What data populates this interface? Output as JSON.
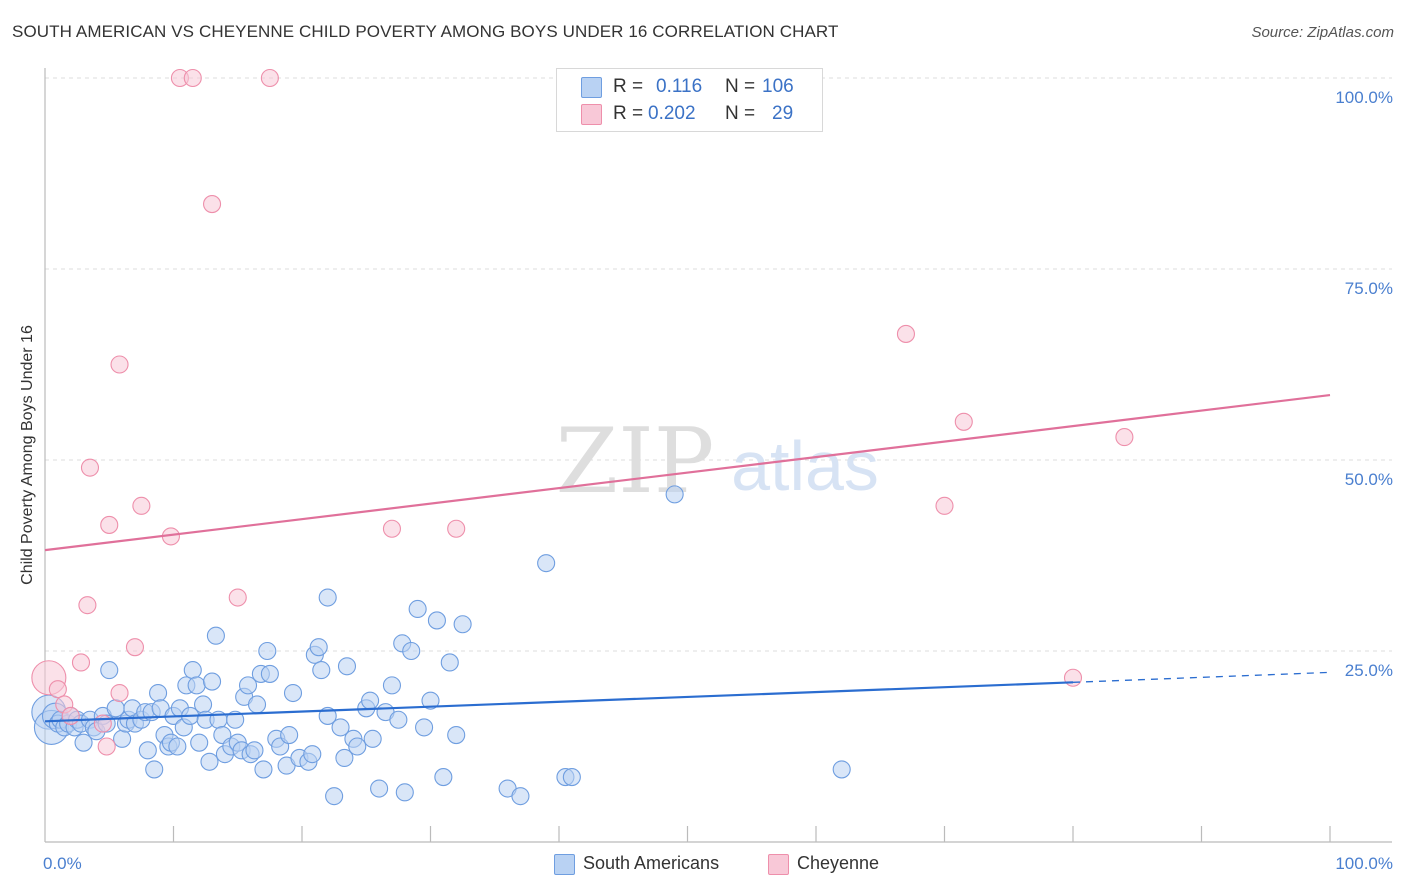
{
  "chart_data": {
    "type": "scatter",
    "title": "SOUTH AMERICAN VS CHEYENNE CHILD POVERTY AMONG BOYS UNDER 16 CORRELATION CHART",
    "source": "Source: ZipAtlas.com",
    "ylabel": "Child Poverty Among Boys Under 16",
    "xlim": [
      0,
      100
    ],
    "ylim": [
      0,
      100
    ],
    "x_tick_labels": [
      "0.0%",
      "100.0%"
    ],
    "y_tick_labels": [
      "100.0%",
      "75.0%",
      "50.0%",
      "25.0%"
    ],
    "y_tick_values": [
      100,
      75,
      50,
      25
    ],
    "watermark": {
      "zip": "ZIP",
      "atlas": "atlas"
    },
    "legend_stats": [
      {
        "r_label": "R =",
        "r": "0.116",
        "n_label": "N =",
        "n": "106"
      },
      {
        "r_label": "R =",
        "r": "0.202",
        "n_label": "N =",
        "n": "29"
      }
    ],
    "series": [
      {
        "name": "South Americans",
        "color": "#6f9ee0",
        "fill": "#b9d2f3",
        "line_color": "#2b6dd0",
        "trend": {
          "x0": 0,
          "y0": 15.8,
          "x1": 80,
          "y1": 20.9,
          "dash_to": 100,
          "dash_y": 22.2
        },
        "points": [
          [
            0.3,
            17.0,
            2
          ],
          [
            0.5,
            15.0,
            2
          ],
          [
            0.8,
            16.5,
            1.5
          ],
          [
            1.0,
            15.5,
            1
          ],
          [
            1.2,
            16.0,
            1
          ],
          [
            1.5,
            15.0,
            1
          ],
          [
            1.8,
            15.5,
            1
          ],
          [
            2.0,
            16.5,
            1
          ],
          [
            2.3,
            15.0,
            1
          ],
          [
            2.5,
            16.0,
            1
          ],
          [
            2.8,
            15.5,
            1
          ],
          [
            3.0,
            13.0,
            1
          ],
          [
            3.5,
            16.0,
            1
          ],
          [
            3.8,
            15.0,
            1
          ],
          [
            4.0,
            14.5,
            1
          ],
          [
            4.5,
            16.5,
            1
          ],
          [
            4.8,
            15.5,
            1
          ],
          [
            5.0,
            22.5,
            1
          ],
          [
            5.5,
            17.5,
            1
          ],
          [
            6.0,
            13.5,
            1
          ],
          [
            6.3,
            15.5,
            1
          ],
          [
            6.5,
            16.0,
            1
          ],
          [
            6.8,
            17.5,
            1
          ],
          [
            7.0,
            15.5,
            1
          ],
          [
            7.5,
            16.0,
            1
          ],
          [
            7.8,
            17.0,
            1
          ],
          [
            8.0,
            12.0,
            1
          ],
          [
            8.3,
            17.0,
            1
          ],
          [
            8.5,
            9.5,
            1
          ],
          [
            8.8,
            19.5,
            1
          ],
          [
            9.0,
            17.5,
            1
          ],
          [
            9.3,
            14.0,
            1
          ],
          [
            9.6,
            12.5,
            1
          ],
          [
            9.8,
            13.0,
            1
          ],
          [
            10.0,
            16.5,
            1
          ],
          [
            10.3,
            12.5,
            1
          ],
          [
            10.5,
            17.5,
            1
          ],
          [
            10.8,
            15.0,
            1
          ],
          [
            11.0,
            20.5,
            1
          ],
          [
            11.3,
            16.5,
            1
          ],
          [
            11.5,
            22.5,
            1
          ],
          [
            11.8,
            20.5,
            1
          ],
          [
            12.0,
            13.0,
            1
          ],
          [
            12.3,
            18.0,
            1
          ],
          [
            12.5,
            16.0,
            1
          ],
          [
            12.8,
            10.5,
            1
          ],
          [
            13.0,
            21.0,
            1
          ],
          [
            13.3,
            27.0,
            1
          ],
          [
            13.5,
            16.0,
            1
          ],
          [
            13.8,
            14.0,
            1
          ],
          [
            14.0,
            11.5,
            1
          ],
          [
            14.5,
            12.5,
            1
          ],
          [
            14.8,
            16.0,
            1
          ],
          [
            15.0,
            13.0,
            1
          ],
          [
            15.3,
            12.0,
            1
          ],
          [
            15.5,
            19.0,
            1
          ],
          [
            15.8,
            20.5,
            1
          ],
          [
            16.0,
            11.5,
            1
          ],
          [
            16.3,
            12.0,
            1
          ],
          [
            16.5,
            18.0,
            1
          ],
          [
            16.8,
            22.0,
            1
          ],
          [
            17.0,
            9.5,
            1
          ],
          [
            17.3,
            25.0,
            1
          ],
          [
            17.5,
            22.0,
            1
          ],
          [
            18.0,
            13.5,
            1
          ],
          [
            18.3,
            12.5,
            1
          ],
          [
            18.8,
            10.0,
            1
          ],
          [
            19.0,
            14.0,
            1
          ],
          [
            19.3,
            19.5,
            1
          ],
          [
            19.8,
            11.0,
            1
          ],
          [
            20.5,
            10.5,
            1
          ],
          [
            20.8,
            11.5,
            1
          ],
          [
            21.0,
            24.5,
            1
          ],
          [
            21.3,
            25.5,
            1
          ],
          [
            21.5,
            22.5,
            1
          ],
          [
            22.0,
            16.5,
            1
          ],
          [
            22.5,
            6.0,
            1
          ],
          [
            23.0,
            15.0,
            1
          ],
          [
            23.3,
            11.0,
            1
          ],
          [
            23.5,
            23.0,
            1
          ],
          [
            24.0,
            13.5,
            1
          ],
          [
            24.3,
            12.5,
            1
          ],
          [
            25.0,
            17.5,
            1
          ],
          [
            25.3,
            18.5,
            1
          ],
          [
            25.5,
            13.5,
            1
          ],
          [
            26.0,
            7.0,
            1
          ],
          [
            26.5,
            17.0,
            1
          ],
          [
            27.0,
            20.5,
            1
          ],
          [
            27.5,
            16.0,
            1
          ],
          [
            27.8,
            26.0,
            1
          ],
          [
            28.0,
            6.5,
            1
          ],
          [
            28.5,
            25.0,
            1
          ],
          [
            29.0,
            30.5,
            1
          ],
          [
            29.5,
            15.0,
            1
          ],
          [
            30.0,
            18.5,
            1
          ],
          [
            30.5,
            29.0,
            1
          ],
          [
            31.0,
            8.5,
            1
          ],
          [
            31.5,
            23.5,
            1
          ],
          [
            32.0,
            14.0,
            1
          ],
          [
            32.5,
            28.5,
            1
          ],
          [
            36.0,
            7.0,
            1
          ],
          [
            37.0,
            6.0,
            1
          ],
          [
            39.0,
            36.5,
            1
          ],
          [
            40.5,
            8.5,
            1
          ],
          [
            41.0,
            8.5,
            1
          ],
          [
            49.0,
            45.5,
            1
          ],
          [
            62.0,
            9.5,
            1
          ],
          [
            22.0,
            32.0,
            1
          ]
        ]
      },
      {
        "name": "Cheyenne",
        "color": "#ee8fab",
        "fill": "#f8c8d7",
        "line_color": "#e0709a",
        "trend": {
          "x0": 0,
          "y0": 38.2,
          "x1": 100,
          "y1": 58.5
        },
        "points": [
          [
            0.3,
            21.5,
            2
          ],
          [
            1.0,
            20.0,
            1
          ],
          [
            1.5,
            18.0,
            1
          ],
          [
            2.0,
            16.5,
            1
          ],
          [
            2.8,
            23.5,
            1
          ],
          [
            3.3,
            31.0,
            1
          ],
          [
            3.5,
            49.0,
            1
          ],
          [
            4.5,
            15.5,
            1
          ],
          [
            4.8,
            12.5,
            1
          ],
          [
            5.0,
            41.5,
            1
          ],
          [
            5.8,
            62.5,
            1
          ],
          [
            5.8,
            19.5,
            1
          ],
          [
            7.0,
            25.5,
            1
          ],
          [
            7.5,
            44.0,
            1
          ],
          [
            9.8,
            40.0,
            1
          ],
          [
            10.5,
            100,
            1
          ],
          [
            11.5,
            100,
            1
          ],
          [
            13.0,
            83.5,
            1
          ],
          [
            15.0,
            32.0,
            1
          ],
          [
            17.5,
            100,
            1
          ],
          [
            27.0,
            41.0,
            1
          ],
          [
            32.0,
            41.0,
            1
          ],
          [
            67.0,
            66.5,
            1
          ],
          [
            70.0,
            44.0,
            1
          ],
          [
            71.5,
            55.0,
            1
          ],
          [
            80.0,
            21.5,
            1
          ],
          [
            84.0,
            53.0,
            1
          ]
        ]
      }
    ]
  }
}
